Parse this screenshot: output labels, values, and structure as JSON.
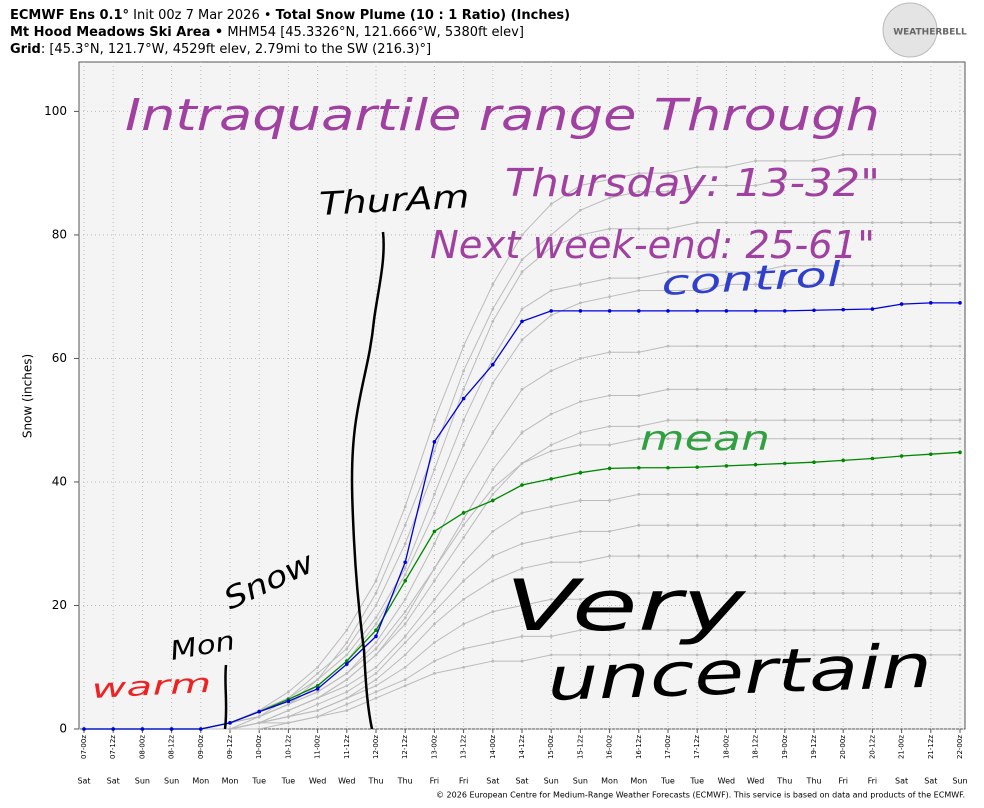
{
  "chart_data": {
    "type": "line",
    "title": [
      "ECMWF Ens 0.1°",
      " Init 00z 7 Mar 2026 • ",
      "Total Snow Plume (10 : 1 Ratio) (Inches)"
    ],
    "subtitle": [
      "Mt Hood Meadows Ski Area •",
      " MHM54 [45.3326°N, 121.666°W, 5380ft elev]"
    ],
    "grid_info": [
      "Grid",
      ": [45.3°N, 121.7°W, 4529ft elev, 2.79mi to the SW (216.3)°]"
    ],
    "logo": "WEATHERBELL",
    "y_label": "Snow (inches)",
    "footer": "© 2026 European Centre for Medium-Range Weather Forecasts (ECMWF). This service is based on data and products of the ECMWF.",
    "categories": [
      "07-00z",
      "07-12z",
      "08-00z",
      "08-12z",
      "09-00z",
      "09-12z",
      "10-00z",
      "10-12z",
      "11-00z",
      "11-12z",
      "12-00z",
      "12-12z",
      "13-00z",
      "13-12z",
      "14-00z",
      "14-12z",
      "15-00z",
      "15-12z",
      "16-00z",
      "16-12z",
      "17-00z",
      "17-12z",
      "18-00z",
      "18-12z",
      "19-00z",
      "19-12z",
      "20-00z",
      "20-12z",
      "21-00z",
      "21-12z",
      "22-00z"
    ],
    "days": [
      "Sat",
      "Sat",
      "Sun",
      "Sun",
      "Mon",
      "Mon",
      "Tue",
      "Tue",
      "Wed",
      "Wed",
      "Thu",
      "Thu",
      "Fri",
      "Fri",
      "Sat",
      "Sat",
      "Sun",
      "Sun",
      "Mon",
      "Mon",
      "Tue",
      "Tue",
      "Wed",
      "Wed",
      "Thu",
      "Thu",
      "Fri",
      "Fri",
      "Sat",
      "Sat",
      "Sun"
    ],
    "ylim": [
      0,
      108
    ],
    "yticks": [
      0,
      20,
      40,
      60,
      80,
      100
    ],
    "grid": true,
    "series": [
      {
        "color": "#bbbbbb",
        "values": [
          0,
          0,
          0,
          0,
          0,
          1,
          3,
          6,
          10,
          16,
          24,
          36,
          50,
          62,
          72,
          80,
          85,
          88,
          89,
          90,
          90,
          91,
          91,
          92,
          92,
          92,
          93,
          93,
          93,
          93,
          93
        ]
      },
      {
        "color": "#bbbbbb",
        "values": [
          0,
          0,
          0,
          0,
          0,
          1,
          2,
          4,
          8,
          14,
          22,
          33,
          45,
          58,
          68,
          76,
          80,
          84,
          86,
          87,
          87,
          88,
          88,
          88,
          89,
          89,
          89,
          89,
          89,
          89,
          89
        ]
      },
      {
        "color": "#bbbbbb",
        "values": [
          0,
          0,
          0,
          0,
          0,
          1,
          2,
          5,
          9,
          13,
          20,
          30,
          42,
          55,
          66,
          74,
          78,
          80,
          81,
          81,
          81,
          82,
          82,
          82,
          82,
          82,
          82,
          82,
          82,
          82,
          82
        ]
      },
      {
        "color": "#bbbbbb",
        "values": [
          0,
          0,
          0,
          0,
          0,
          1,
          3,
          5,
          8,
          12,
          18,
          26,
          38,
          50,
          60,
          68,
          71,
          72,
          73,
          73,
          74,
          74,
          74,
          74,
          75,
          75,
          75,
          75,
          75,
          75,
          75
        ]
      },
      {
        "color": "#bbbbbb",
        "values": [
          0,
          0,
          0,
          0,
          0,
          0,
          2,
          4,
          7,
          11,
          17,
          25,
          35,
          46,
          56,
          63,
          67,
          69,
          70,
          71,
          71,
          71,
          72,
          72,
          72,
          72,
          72,
          72,
          72,
          72,
          72
        ]
      },
      {
        "color": "#bbbbbb",
        "values": [
          0,
          0,
          0,
          0,
          0,
          1,
          2,
          4,
          6,
          9,
          14,
          21,
          30,
          40,
          48,
          55,
          58,
          60,
          61,
          61,
          62,
          62,
          62,
          62,
          62,
          62,
          62,
          62,
          62,
          62,
          62
        ]
      },
      {
        "color": "#bbbbbb",
        "values": [
          0,
          0,
          0,
          0,
          0,
          0,
          1,
          3,
          5,
          8,
          12,
          18,
          26,
          34,
          42,
          48,
          51,
          53,
          54,
          54,
          55,
          55,
          55,
          55,
          55,
          55,
          55,
          55,
          55,
          55,
          55
        ]
      },
      {
        "color": "#bbbbbb",
        "values": [
          0,
          0,
          0,
          0,
          0,
          0,
          1,
          3,
          5,
          8,
          12,
          17,
          24,
          31,
          38,
          43,
          46,
          48,
          49,
          49,
          50,
          50,
          50,
          50,
          50,
          50,
          50,
          50,
          50,
          50,
          50
        ]
      },
      {
        "color": "#bbbbbb",
        "values": [
          0,
          0,
          0,
          0,
          0,
          1,
          2,
          4,
          6,
          9,
          13,
          19,
          26,
          33,
          39,
          43,
          45,
          46,
          46,
          47,
          47,
          47,
          47,
          47,
          47,
          47,
          47,
          47,
          47,
          47,
          47
        ]
      },
      {
        "color": "#bbbbbb",
        "values": [
          0,
          0,
          0,
          0,
          0,
          0,
          1,
          3,
          5,
          7,
          10,
          15,
          21,
          27,
          32,
          35,
          36,
          37,
          37,
          38,
          38,
          38,
          38,
          38,
          38,
          38,
          38,
          38,
          38,
          38,
          38
        ]
      },
      {
        "color": "#bbbbbb",
        "values": [
          0,
          0,
          0,
          0,
          0,
          0,
          1,
          2,
          4,
          6,
          9,
          14,
          19,
          24,
          28,
          30,
          31,
          32,
          32,
          33,
          33,
          33,
          33,
          33,
          33,
          33,
          33,
          33,
          33,
          33,
          33
        ]
      },
      {
        "color": "#bbbbbb",
        "values": [
          0,
          0,
          0,
          0,
          0,
          0,
          1,
          2,
          3,
          5,
          8,
          12,
          17,
          21,
          24,
          26,
          27,
          27,
          28,
          28,
          28,
          28,
          28,
          28,
          28,
          28,
          28,
          28,
          28,
          28,
          28
        ]
      },
      {
        "color": "#bbbbbb",
        "values": [
          0,
          0,
          0,
          0,
          0,
          0,
          1,
          2,
          3,
          5,
          7,
          10,
          14,
          17,
          19,
          20,
          21,
          21,
          22,
          22,
          22,
          22,
          22,
          22,
          22,
          22,
          22,
          22,
          22,
          22,
          22
        ]
      },
      {
        "color": "#bbbbbb",
        "values": [
          0,
          0,
          0,
          0,
          0,
          0,
          1,
          1,
          2,
          4,
          6,
          8,
          11,
          13,
          14,
          15,
          15,
          16,
          16,
          16,
          16,
          16,
          16,
          16,
          16,
          16,
          16,
          16,
          16,
          16,
          16
        ]
      },
      {
        "color": "#bbbbbb",
        "values": [
          0,
          0,
          0,
          0,
          0,
          0,
          0,
          1,
          2,
          3,
          5,
          7,
          9,
          10,
          11,
          11,
          12,
          12,
          12,
          12,
          12,
          12,
          12,
          12,
          12,
          12,
          12,
          12,
          12,
          12,
          12
        ]
      },
      {
        "color": "#008800",
        "values": [
          0,
          0,
          0,
          0,
          0,
          1,
          2.8,
          4.8,
          7,
          11,
          16,
          24,
          32,
          35,
          37,
          39.5,
          40.5,
          41.5,
          42.2,
          42.3,
          42.3,
          42.4,
          42.6,
          42.8,
          43,
          43.2,
          43.5,
          43.8,
          44.2,
          44.5,
          44.8
        ]
      },
      {
        "color": "#0000dd",
        "values": [
          0,
          0,
          0,
          0,
          0,
          1,
          2.8,
          4.5,
          6.5,
          10.5,
          15,
          27,
          46.5,
          53.5,
          59,
          66,
          67.7,
          67.7,
          67.7,
          67.7,
          67.7,
          67.7,
          67.7,
          67.7,
          67.7,
          67.8,
          67.9,
          68,
          68.8,
          69,
          69
        ]
      }
    ],
    "annotations": [
      {
        "text": "Intraquartile range Through",
        "color": "#a040a0"
      },
      {
        "text": "Thursday: 13-32\"",
        "color": "#a040a0"
      },
      {
        "text": "Next week-end: 25-61\"",
        "color": "#a040a0"
      },
      {
        "text": "control",
        "color": "#3040cc"
      },
      {
        "text": "mean",
        "color": "#30a040"
      },
      {
        "text": "ThurAm",
        "color": "#000000"
      },
      {
        "text": "Mon",
        "color": "#000000"
      },
      {
        "text": "Snow",
        "color": "#000000"
      },
      {
        "text": "warm",
        "color": "#ee2222"
      },
      {
        "text": "Very",
        "color": "#000000"
      },
      {
        "text": "uncertain",
        "color": "#000000"
      }
    ]
  }
}
